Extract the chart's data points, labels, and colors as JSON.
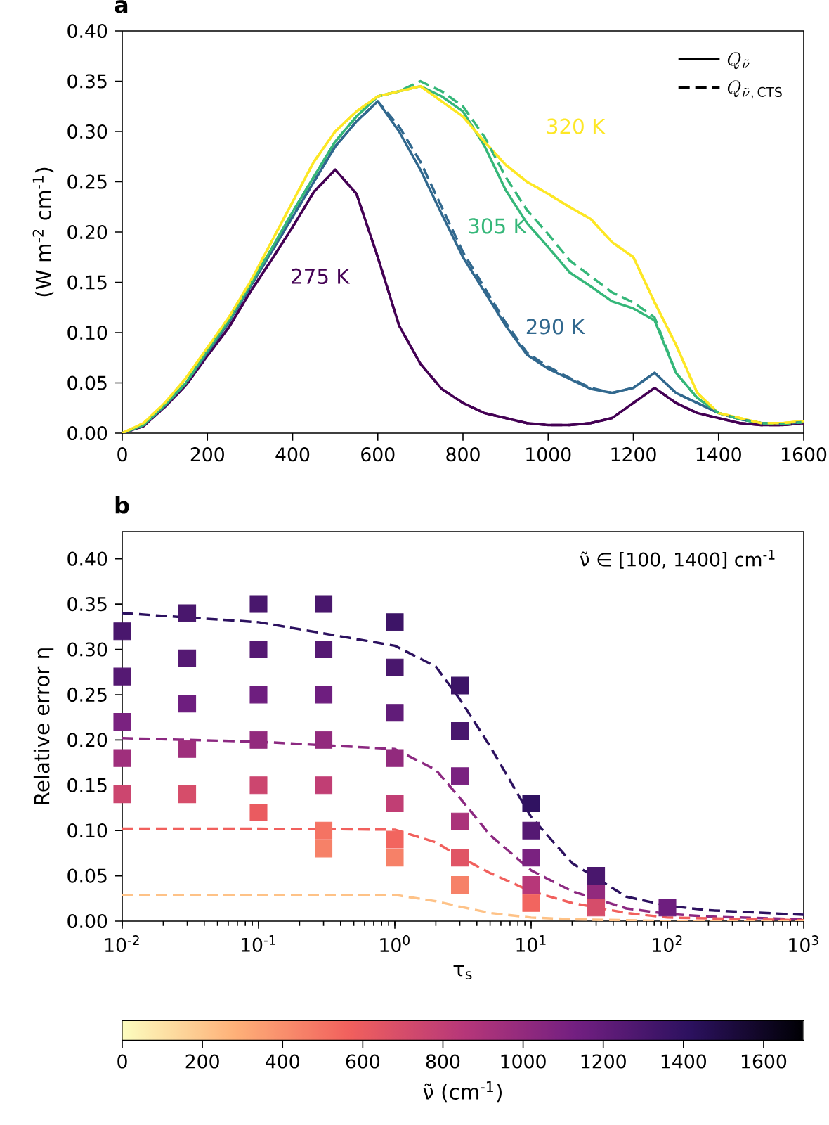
{
  "chart_data": [
    {
      "type": "line",
      "title": "a",
      "ylabel": "(W m$^{-2}$ cm$^{-1}$)",
      "x": [
        0,
        50,
        100,
        150,
        200,
        250,
        300,
        350,
        400,
        450,
        500,
        550,
        600,
        650,
        700,
        750,
        800,
        850,
        900,
        950,
        1000,
        1050,
        1100,
        1150,
        1200,
        1250,
        1300,
        1350,
        1400,
        1450,
        1500,
        1550,
        1600
      ],
      "xlim": [
        0,
        1600
      ],
      "xticks": [
        0,
        200,
        400,
        600,
        800,
        1000,
        1200,
        1400,
        1600
      ],
      "ylim": [
        0,
        0.4
      ],
      "yticks": [
        {
          "value": 0,
          "label": "0.00"
        },
        {
          "value": 0.05,
          "label": "0.05"
        },
        {
          "value": 0.1,
          "label": "0.10"
        },
        {
          "value": 0.15,
          "label": "0.15"
        },
        {
          "value": 0.2,
          "label": "0.20"
        },
        {
          "value": 0.25,
          "label": "0.25"
        },
        {
          "value": 0.3,
          "label": "0.30"
        },
        {
          "value": 0.35,
          "label": "0.35"
        },
        {
          "value": 0.4,
          "label": "0.40"
        }
      ],
      "series": [
        {
          "color": "#440154",
          "line_style": "solid",
          "values": [
            0,
            0.007,
            0.026,
            0.048,
            0.077,
            0.105,
            0.14,
            0.172,
            0.205,
            0.24,
            0.262,
            0.238,
            0.175,
            0.107,
            0.069,
            0.044,
            0.03,
            0.02,
            0.015,
            0.01,
            0.008,
            0.008,
            0.01,
            0.015,
            0.03,
            0.045,
            0.03,
            0.02,
            0.015,
            0.01,
            0.008,
            0.008,
            0.01
          ]
        },
        {
          "color": "#31688e",
          "line_style": "solid",
          "values": [
            0,
            0.008,
            0.027,
            0.05,
            0.08,
            0.11,
            0.145,
            0.18,
            0.215,
            0.25,
            0.285,
            0.31,
            0.33,
            0.3,
            0.262,
            0.218,
            0.175,
            0.141,
            0.107,
            0.078,
            0.064,
            0.054,
            0.044,
            0.04,
            0.045,
            0.06,
            0.04,
            0.03,
            0.02,
            0.014,
            0.01,
            0.009,
            0.011
          ]
        },
        {
          "color": "#35b779",
          "line_style": "solid",
          "values": [
            0,
            0.008,
            0.028,
            0.05,
            0.082,
            0.112,
            0.147,
            0.183,
            0.22,
            0.255,
            0.29,
            0.315,
            0.335,
            0.34,
            0.345,
            0.335,
            0.32,
            0.286,
            0.242,
            0.209,
            0.185,
            0.16,
            0.146,
            0.131,
            0.124,
            0.112,
            0.06,
            0.035,
            0.02,
            0.014,
            0.01,
            0.009,
            0.011
          ]
        },
        {
          "color": "#fde725",
          "line_style": "solid",
          "values": [
            0,
            0.01,
            0.03,
            0.055,
            0.085,
            0.115,
            0.15,
            0.19,
            0.23,
            0.27,
            0.3,
            0.32,
            0.335,
            0.34,
            0.345,
            0.33,
            0.315,
            0.29,
            0.267,
            0.25,
            0.238,
            0.225,
            0.213,
            0.19,
            0.175,
            0.13,
            0.088,
            0.04,
            0.02,
            0.015,
            0.01,
            0.01,
            0.012
          ]
        },
        {
          "color": "#440154",
          "line_style": "dashed",
          "values": [
            0,
            0.007,
            0.026,
            0.048,
            0.077,
            0.105,
            0.14,
            0.172,
            0.205,
            0.24,
            0.262,
            0.238,
            0.175,
            0.107,
            0.069,
            0.044,
            0.03,
            0.02,
            0.015,
            0.01,
            0.008,
            0.008,
            0.01,
            0.015,
            0.03,
            0.045,
            0.03,
            0.02,
            0.015,
            0.01,
            0.008,
            0.008,
            0.01
          ]
        },
        {
          "color": "#31688e",
          "line_style": "dashed",
          "values": [
            0,
            0.008,
            0.027,
            0.05,
            0.08,
            0.11,
            0.145,
            0.18,
            0.215,
            0.25,
            0.285,
            0.31,
            0.33,
            0.305,
            0.27,
            0.225,
            0.18,
            0.145,
            0.11,
            0.08,
            0.066,
            0.055,
            0.045,
            0.04,
            0.045,
            0.06,
            0.04,
            0.03,
            0.02,
            0.014,
            0.01,
            0.009,
            0.011
          ]
        },
        {
          "color": "#35b779",
          "line_style": "dashed",
          "values": [
            0,
            0.008,
            0.028,
            0.05,
            0.082,
            0.112,
            0.147,
            0.183,
            0.22,
            0.255,
            0.29,
            0.315,
            0.335,
            0.34,
            0.35,
            0.34,
            0.325,
            0.295,
            0.255,
            0.222,
            0.198,
            0.172,
            0.156,
            0.14,
            0.13,
            0.115,
            0.06,
            0.035,
            0.02,
            0.014,
            0.01,
            0.009,
            0.011
          ]
        },
        {
          "color": "#fde725",
          "line_style": "dashed",
          "values": [
            0,
            0.01,
            0.03,
            0.055,
            0.085,
            0.115,
            0.15,
            0.19,
            0.23,
            0.27,
            0.3,
            0.32,
            0.335,
            0.34,
            0.345,
            0.33,
            0.315,
            0.29,
            0.267,
            0.25,
            0.238,
            0.225,
            0.213,
            0.19,
            0.175,
            0.13,
            0.088,
            0.04,
            0.02,
            0.015,
            0.01,
            0.01,
            0.012
          ]
        }
      ],
      "annotations": [
        "Q_{\\tilde{\\nu}}",
        "Q_{\\tilde{\\nu},\\,\\mathrm{CTS}}",
        "275 K",
        "290 K",
        "305 K",
        "320 K"
      ]
    },
    {
      "type": "line",
      "title": "b",
      "xlabel": "τ$_{s}$",
      "ylabel": "Relative error η",
      "log": "x",
      "x": [
        0.01,
        0.1,
        1,
        2,
        3,
        5,
        10,
        20,
        50,
        100,
        200,
        1000
      ],
      "xlim": [
        0.01,
        1000
      ],
      "xticks": [
        {
          "value": 0.01,
          "label": "10$^{-2}$"
        },
        {
          "value": 0.1,
          "label": "10$^{-1}$"
        },
        {
          "value": 1,
          "label": "10$^{0}$"
        },
        {
          "value": 10,
          "label": "10$^{1}$"
        },
        {
          "value": 100,
          "label": "10$^{2}$"
        },
        {
          "value": 1000,
          "label": "10$^{3}$"
        }
      ],
      "ylim": [
        0,
        0.43
      ],
      "yticks": [
        {
          "value": 0,
          "label": "0.00"
        },
        {
          "value": 0.05,
          "label": "0.05"
        },
        {
          "value": 0.1,
          "label": "0.10"
        },
        {
          "value": 0.15,
          "label": "0.15"
        },
        {
          "value": 0.2,
          "label": "0.20"
        },
        {
          "value": 0.25,
          "label": "0.25"
        },
        {
          "value": 0.3,
          "label": "0.30"
        },
        {
          "value": 0.35,
          "label": "0.35"
        },
        {
          "value": 0.4,
          "label": "0.40"
        }
      ],
      "clabel": "ν̃ (cm$^{-1}$)",
      "clim": [
        0,
        1700
      ],
      "cticks": [
        0,
        200,
        400,
        600,
        800,
        1000,
        1200,
        1400,
        1600
      ],
      "series": [
        {
          "type": "scatter",
          "marker": "square",
          "x": [
            0.01,
            0.01,
            0.01,
            0.01,
            0.01,
            0.03,
            0.03,
            0.03,
            0.03,
            0.03,
            0.1,
            0.1,
            0.1,
            0.1,
            0.1,
            0.1,
            0.3,
            0.3,
            0.3,
            0.3,
            0.3,
            0.3,
            0.3,
            1,
            1,
            1,
            1,
            1,
            1,
            1,
            3,
            3,
            3,
            3,
            3,
            3,
            10,
            10,
            10,
            10,
            10,
            30,
            30,
            30,
            100
          ],
          "values": [
            0.32,
            0.27,
            0.22,
            0.18,
            0.14,
            0.34,
            0.29,
            0.24,
            0.19,
            0.14,
            0.35,
            0.3,
            0.25,
            0.2,
            0.15,
            0.12,
            0.35,
            0.3,
            0.25,
            0.2,
            0.15,
            0.1,
            0.08,
            0.33,
            0.28,
            0.23,
            0.18,
            0.13,
            0.09,
            0.07,
            0.26,
            0.21,
            0.16,
            0.11,
            0.07,
            0.04,
            0.13,
            0.1,
            0.07,
            0.04,
            0.02,
            0.05,
            0.03,
            0.015,
            0.015
          ],
          "cvalues": [
            1300,
            1250,
            1100,
            950,
            750,
            1300,
            1250,
            1150,
            950,
            700,
            1300,
            1250,
            1150,
            1000,
            750,
            600,
            1300,
            1250,
            1150,
            1000,
            800,
            500,
            450,
            1350,
            1300,
            1200,
            1000,
            800,
            550,
            450,
            1350,
            1300,
            1100,
            900,
            650,
            450,
            1400,
            1250,
            1100,
            850,
            550,
            1300,
            1000,
            700,
            1150
          ],
          "colors": [
            "#49176d",
            "#551973",
            "#7a2280",
            "#9f2f7c",
            "#cc466f",
            "#49176d",
            "#551973",
            "#6e1e7f",
            "#9f2f7c",
            "#d64d6a",
            "#49176d",
            "#551973",
            "#6e1e7f",
            "#922a7d",
            "#cc466f",
            "#ea5b60",
            "#49176d",
            "#551973",
            "#6e1e7f",
            "#922a7d",
            "#c13e74",
            "#f47363",
            "#f68168",
            "#3d1467",
            "#49176d",
            "#611c79",
            "#922a7d",
            "#c13e74",
            "#f2655f",
            "#f68168",
            "#3d1467",
            "#49176d",
            "#7a2280",
            "#ab337a",
            "#e05465",
            "#f68168",
            "#301261",
            "#551973",
            "#7a2280",
            "#b73779",
            "#f2655f",
            "#49176d",
            "#922a7d",
            "#d64d6a",
            "#6e1e7f"
          ]
        },
        {
          "color": "#2c115f",
          "line_style": "dashed",
          "values": [
            0.34,
            0.33,
            0.304,
            0.281,
            0.245,
            0.193,
            0.115,
            0.064,
            0.027,
            0.017,
            0.012,
            0.007
          ]
        },
        {
          "color": "#8c2981",
          "line_style": "dashed",
          "values": [
            0.202,
            0.198,
            0.19,
            0.167,
            0.136,
            0.095,
            0.056,
            0.033,
            0.014,
            0.008,
            0.005,
            0.002
          ]
        },
        {
          "color": "#f1605d",
          "line_style": "dashed",
          "values": [
            0.102,
            0.102,
            0.101,
            0.087,
            0.071,
            0.053,
            0.033,
            0.02,
            0.009,
            0.004,
            0.003,
            0.001
          ]
        },
        {
          "color": "#fec287",
          "line_style": "dashed",
          "values": [
            0.029,
            0.029,
            0.029,
            0.022,
            0.016,
            0.009,
            0.004,
            0.002,
            0.001,
            0,
            0,
            0
          ]
        }
      ],
      "annotations": [
        "ν̃ ∈ [100, 1400] cm$^{-1}$"
      ]
    }
  ]
}
